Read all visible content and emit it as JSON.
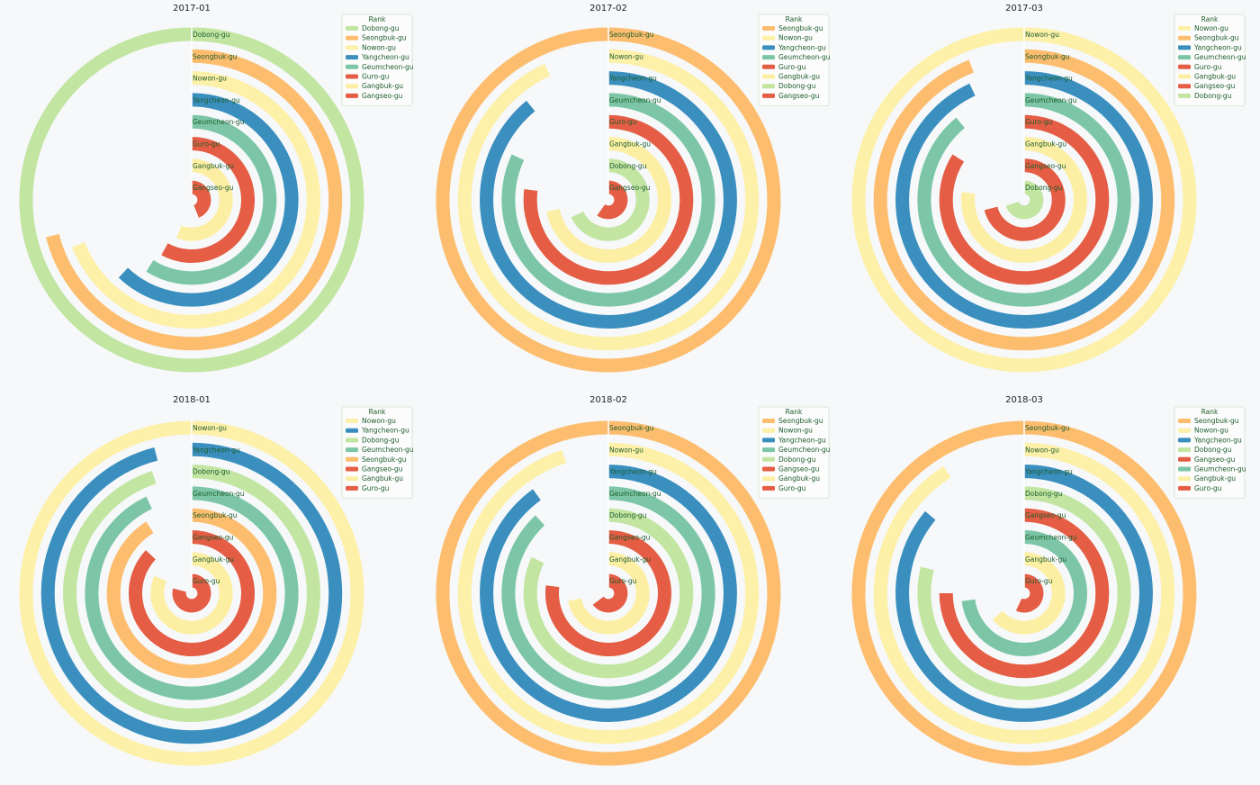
{
  "legend_title": "Rank",
  "colors": {
    "Dobong-gu": "#c2e5a2",
    "Seongbuk-gu": "#fdbd6e",
    "Nowon-gu": "#fdf0a8",
    "Yangcheon-gu": "#3a8fbf",
    "Geumcheon-gu": "#7cc6a7",
    "Guro-gu": "#e45d44",
    "Gangbuk-gu": "#fcefa4",
    "Gangseo-gu": "#e45d44"
  },
  "chart_data": [
    {
      "type": "radial_bar",
      "title": "2017-01",
      "legend_title": "Rank",
      "categories": [
        "Dobong-gu",
        "Seongbuk-gu",
        "Nowon-gu",
        "Yangcheon-gu",
        "Geumcheon-gu",
        "Guro-gu",
        "Gangbuk-gu",
        "Gangseo-gu"
      ],
      "values": [
        1.0,
        0.71,
        0.69,
        0.62,
        0.59,
        0.58,
        0.56,
        0.44
      ]
    },
    {
      "type": "radial_bar",
      "title": "2017-02",
      "legend_title": "Rank",
      "categories": [
        "Seongbuk-gu",
        "Nowon-gu",
        "Yangcheon-gu",
        "Geumcheon-gu",
        "Guro-gu",
        "Gangbuk-gu",
        "Dobong-gu",
        "Gangseo-gu"
      ],
      "values": [
        1.0,
        0.93,
        0.89,
        0.82,
        0.77,
        0.72,
        0.68,
        0.6
      ]
    },
    {
      "type": "radial_bar",
      "title": "2017-03",
      "legend_title": "Rank",
      "categories": [
        "Nowon-gu",
        "Seongbuk-gu",
        "Yangcheon-gu",
        "Geumcheon-gu",
        "Guro-gu",
        "Gangbuk-gu",
        "Gangseo-gu",
        "Dobong-gu"
      ],
      "values": [
        1.0,
        0.94,
        0.93,
        0.89,
        0.84,
        0.77,
        0.71,
        0.7
      ]
    },
    {
      "type": "radial_bar",
      "title": "2018-01",
      "legend_title": "Rank",
      "categories": [
        "Nowon-gu",
        "Yangcheon-gu",
        "Dobong-gu",
        "Geumcheon-gu",
        "Seongbuk-gu",
        "Gangseo-gu",
        "Gangbuk-gu",
        "Guro-gu"
      ],
      "values": [
        1.0,
        0.96,
        0.95,
        0.93,
        0.91,
        0.87,
        0.82,
        0.79
      ]
    },
    {
      "type": "radial_bar",
      "title": "2018-02",
      "legend_title": "Rank",
      "categories": [
        "Seongbuk-gu",
        "Nowon-gu",
        "Yangcheon-gu",
        "Geumcheon-gu",
        "Dobong-gu",
        "Gangseo-gu",
        "Gangbuk-gu",
        "Guro-gu"
      ],
      "values": [
        1.0,
        0.95,
        0.9,
        0.88,
        0.82,
        0.77,
        0.72,
        0.65
      ]
    },
    {
      "type": "radial_bar",
      "title": "2018-03",
      "legend_title": "Rank",
      "categories": [
        "Seongbuk-gu",
        "Nowon-gu",
        "Yangcheon-gu",
        "Dobong-gu",
        "Gangseo-gu",
        "Geumcheon-gu",
        "Gangbuk-gu",
        "Guro-gu"
      ],
      "values": [
        1.0,
        0.91,
        0.86,
        0.79,
        0.75,
        0.73,
        0.64,
        0.57
      ]
    }
  ]
}
